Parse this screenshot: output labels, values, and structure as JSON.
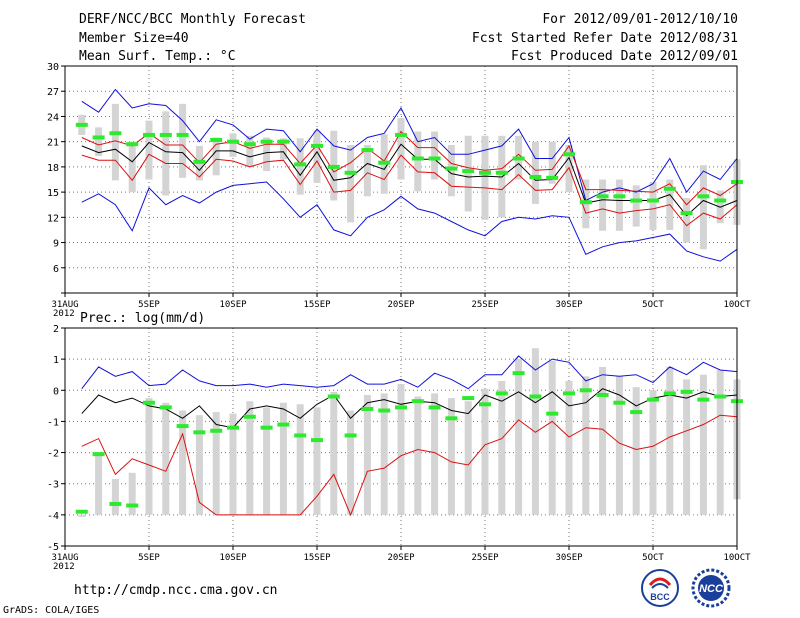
{
  "header": {
    "title": "DERF/NCC/BCC Monthly Forecast",
    "member_size": "Member Size=40",
    "variable": "Mean Surf. Temp.: °C",
    "forecast_for": "For 2012/09/01-2012/10/10",
    "started": "Fcst Started Refer Date 2012/08/31",
    "produced": "Fcst Produced Date 2012/09/01"
  },
  "footer": {
    "url": "http://cmdp.ncc.cma.gov.cn",
    "credit": "GrADS: COLA/IGES",
    "logo_bcc": "BCC",
    "logo_ncc": "NCC"
  },
  "colors": {
    "box": "#d4d4d4",
    "median": "#2eea2e",
    "upper": "#1010dd",
    "lower": "#1010dd",
    "mean": "#000000",
    "spread": "#dd1010"
  },
  "chart_data": [
    {
      "type": "line",
      "title": "Mean Surf. Temp.: °C",
      "x_tick_labels": [
        "31AUG\n2012",
        "5SEP",
        "10SEP",
        "15SEP",
        "20SEP",
        "25SEP",
        "30SEP",
        "5OCT",
        "10OCT"
      ],
      "x_tick_days": [
        0,
        5,
        10,
        15,
        20,
        25,
        30,
        35,
        40
      ],
      "xlim": [
        0,
        40
      ],
      "ylim": [
        3,
        30
      ],
      "y_ticks": [
        3,
        6,
        9,
        12,
        15,
        18,
        21,
        24,
        27,
        30
      ],
      "y_tick_labels": [
        "",
        "6",
        "9",
        "12",
        "15",
        "18",
        "21",
        "24",
        "27",
        "30"
      ],
      "days": [
        1,
        2,
        3,
        4,
        5,
        6,
        7,
        8,
        9,
        10,
        11,
        12,
        13,
        14,
        15,
        16,
        17,
        18,
        19,
        20,
        21,
        22,
        23,
        24,
        25,
        26,
        27,
        28,
        29,
        30,
        31,
        32,
        33,
        34,
        35,
        36,
        37,
        38,
        39,
        40
      ],
      "max": [
        25.8,
        24.5,
        27.2,
        25.0,
        25.5,
        25.3,
        23.5,
        21.0,
        23.6,
        23.0,
        21.3,
        22.5,
        22.3,
        19.8,
        22.5,
        20.5,
        20.0,
        21.5,
        22.0,
        25.0,
        21.0,
        21.5,
        19.5,
        19.5,
        20.0,
        20.5,
        22.5,
        19.0,
        19.0,
        21.5,
        14.0,
        15.0,
        15.5,
        15.0,
        16.0,
        19.0,
        15.0,
        17.5,
        16.5,
        19.0
      ],
      "min": [
        13.8,
        14.8,
        13.5,
        10.4,
        15.5,
        13.5,
        14.6,
        13.7,
        15.0,
        15.8,
        16.0,
        16.2,
        14.2,
        12.0,
        13.5,
        10.5,
        9.8,
        12.0,
        12.9,
        14.5,
        13.0,
        12.5,
        11.5,
        10.5,
        9.8,
        11.5,
        12.0,
        11.8,
        12.2,
        12.0,
        7.6,
        8.5,
        9.0,
        9.2,
        9.6,
        10.0,
        8.0,
        7.3,
        6.8,
        8.2
      ],
      "p_hi": [
        21.5,
        20.6,
        21.1,
        20.5,
        22.0,
        20.6,
        20.6,
        18.5,
        20.7,
        21.0,
        20.2,
        20.7,
        20.7,
        18.4,
        20.6,
        17.4,
        18.5,
        20.2,
        18.7,
        22.2,
        20.3,
        20.3,
        18.4,
        17.9,
        17.6,
        17.8,
        19.5,
        17.6,
        17.7,
        20.5,
        15.3,
        15.3,
        15.2,
        15.1,
        15.0,
        16.0,
        13.5,
        15.5,
        14.6,
        16.0
      ],
      "p_lo": [
        19.4,
        18.8,
        18.8,
        16.4,
        19.5,
        18.4,
        18.4,
        16.8,
        18.9,
        18.7,
        18.0,
        18.6,
        18.8,
        15.9,
        18.7,
        15.0,
        15.2,
        17.3,
        16.5,
        19.4,
        17.4,
        17.3,
        15.7,
        15.6,
        15.5,
        15.3,
        17.1,
        15.2,
        15.3,
        17.9,
        12.5,
        13.0,
        12.5,
        12.8,
        13.0,
        13.5,
        11.0,
        12.5,
        11.8,
        13.5
      ],
      "mean": [
        20.5,
        19.7,
        20.1,
        18.6,
        20.9,
        19.8,
        19.7,
        17.6,
        19.9,
        19.9,
        19.2,
        19.7,
        19.8,
        17.0,
        19.8,
        16.4,
        16.7,
        18.4,
        17.7,
        20.7,
        18.9,
        18.9,
        17.2,
        16.8,
        16.9,
        16.8,
        18.4,
        16.4,
        16.5,
        19.1,
        13.7,
        14.1,
        14.0,
        14.0,
        14.0,
        14.7,
        12.2,
        14.0,
        13.2,
        14.0
      ],
      "median": [
        23.0,
        21.5,
        22.0,
        20.7,
        21.8,
        21.8,
        21.8,
        18.6,
        21.2,
        21.0,
        20.7,
        21.0,
        21.0,
        18.3,
        20.5,
        18.0,
        17.3,
        20.0,
        18.5,
        21.8,
        19.0,
        19.0,
        17.8,
        17.5,
        17.3,
        17.3,
        19.0,
        16.8,
        16.7,
        19.5,
        13.8,
        14.5,
        14.5,
        14.0,
        14.0,
        15.4,
        12.5,
        14.5,
        14.0,
        16.2
      ],
      "box_top": [
        24.2,
        22.7,
        25.5,
        21.0,
        23.5,
        24.6,
        25.5,
        20.5,
        21.5,
        22.0,
        21.7,
        21.5,
        21.4,
        21.4,
        22.3,
        22.3,
        20.6,
        20.6,
        21.9,
        23.8,
        22.2,
        22.2,
        20.6,
        21.7,
        21.7,
        21.7,
        21.7,
        21.0,
        21.0,
        20.6,
        16.5,
        16.5,
        16.5,
        15.8,
        16.2,
        16.5,
        14.3,
        18.2,
        15.2,
        18.9
      ],
      "box_bot": [
        21.8,
        19.3,
        16.4,
        15.0,
        16.5,
        14.6,
        16.7,
        16.4,
        17.0,
        19.2,
        18.0,
        17.5,
        18.9,
        14.7,
        16.1,
        14.0,
        11.4,
        14.5,
        14.8,
        16.5,
        15.1,
        16.5,
        14.5,
        12.7,
        11.7,
        12.0,
        16.5,
        13.6,
        16.0,
        15.0,
        10.7,
        10.4,
        10.4,
        10.9,
        10.5,
        10.5,
        9.0,
        8.2,
        11.3,
        11.1
      ]
    },
    {
      "type": "line",
      "title": "Prec.: log(mm/d)",
      "x_tick_labels": [
        "31AUG\n2012",
        "5SEP",
        "10SEP",
        "15SEP",
        "20SEP",
        "25SEP",
        "30SEP",
        "5OCT",
        "10OCT"
      ],
      "x_tick_days": [
        0,
        5,
        10,
        15,
        20,
        25,
        30,
        35,
        40
      ],
      "xlim": [
        0,
        40
      ],
      "ylim": [
        -5,
        2
      ],
      "y_ticks": [
        -5,
        -4,
        -3,
        -2,
        -1,
        0,
        1,
        2
      ],
      "y_tick_labels": [
        "-5",
        "-4",
        "-3",
        "-2",
        "-1",
        "0",
        "1",
        "2"
      ],
      "days": [
        1,
        2,
        3,
        4,
        5,
        6,
        7,
        8,
        9,
        10,
        11,
        12,
        13,
        14,
        15,
        16,
        17,
        18,
        19,
        20,
        21,
        22,
        23,
        24,
        25,
        26,
        27,
        28,
        29,
        30,
        31,
        32,
        33,
        34,
        35,
        36,
        37,
        38,
        39,
        40
      ],
      "max": [
        0.05,
        0.75,
        0.45,
        0.6,
        0.15,
        0.2,
        0.65,
        0.3,
        0.15,
        0.15,
        0.2,
        0.1,
        0.2,
        0.15,
        0.1,
        0.15,
        0.5,
        0.2,
        0.2,
        0.35,
        0.1,
        0.55,
        0.35,
        0.05,
        0.5,
        0.5,
        1.1,
        0.65,
        1.0,
        0.9,
        0.3,
        0.5,
        0.45,
        0.5,
        0.25,
        0.75,
        0.5,
        0.9,
        0.65,
        0.6
      ],
      "min": [
        -1.8,
        -1.55,
        -2.7,
        -2.2,
        -2.4,
        -2.6,
        -1.4,
        -3.6,
        -4.0,
        -4.0,
        -4.0,
        -4.0,
        -4.0,
        -4.0,
        -3.4,
        -2.7,
        -4.0,
        -2.6,
        -2.5,
        -2.1,
        -1.9,
        -2.0,
        -2.3,
        -2.4,
        -1.75,
        -1.55,
        -0.95,
        -1.35,
        -1.0,
        -1.5,
        -1.2,
        -1.25,
        -1.7,
        -1.9,
        -1.8,
        -1.5,
        -1.3,
        -1.1,
        -0.8,
        -0.85
      ],
      "mean": [
        -0.75,
        -0.15,
        -0.4,
        -0.25,
        -0.5,
        -0.6,
        -0.9,
        -0.5,
        -1.1,
        -1.2,
        -0.6,
        -0.5,
        -0.6,
        -0.9,
        -0.45,
        -0.15,
        -0.9,
        -0.4,
        -0.3,
        -0.45,
        -0.35,
        -0.4,
        -0.65,
        -0.75,
        -0.15,
        -0.35,
        -0.05,
        -0.4,
        -0.05,
        -0.5,
        -0.4,
        0.05,
        -0.15,
        -0.5,
        -0.25,
        -0.15,
        -0.25,
        -0.05,
        -0.2,
        -0.15
      ],
      "median": [
        -3.9,
        -2.05,
        -3.65,
        -3.7,
        -0.4,
        -0.55,
        -1.15,
        -1.35,
        -1.3,
        -1.2,
        -0.85,
        -1.2,
        -1.1,
        -1.45,
        -1.6,
        -0.2,
        -1.45,
        -0.6,
        -0.65,
        -0.55,
        -0.35,
        -0.55,
        -0.9,
        -0.25,
        -0.45,
        -0.1,
        0.55,
        -0.2,
        -0.75,
        -0.1,
        0.0,
        -0.15,
        -0.4,
        -0.7,
        -0.3,
        -0.1,
        -0.05,
        -0.3,
        -0.2,
        -0.35
      ],
      "box_top": [
        -4.0,
        -2.0,
        -2.85,
        -2.65,
        -0.25,
        -0.4,
        -0.65,
        -0.8,
        -0.7,
        -0.75,
        -0.35,
        -0.55,
        -0.4,
        -0.45,
        -0.55,
        -0.05,
        -0.65,
        -0.15,
        -0.1,
        0.2,
        -0.2,
        -0.1,
        -0.25,
        -0.35,
        0.05,
        0.3,
        1.0,
        1.35,
        0.95,
        0.3,
        0.45,
        0.75,
        0.45,
        0.1,
        0.0,
        0.75,
        0.35,
        0.5,
        0.65,
        0.35
      ],
      "box_bot": [
        -4.0,
        -4.0,
        -4.0,
        -4.0,
        -4.0,
        -4.0,
        -4.0,
        -4.0,
        -4.0,
        -4.0,
        -4.0,
        -4.0,
        -4.0,
        -4.0,
        -4.0,
        -4.0,
        -4.0,
        -4.0,
        -4.0,
        -4.0,
        -4.0,
        -4.0,
        -4.0,
        -4.0,
        -4.0,
        -4.0,
        -4.0,
        -4.0,
        -4.0,
        -4.0,
        -4.0,
        -4.0,
        -4.0,
        -4.0,
        -4.0,
        -4.0,
        -4.0,
        -4.0,
        -4.0,
        -3.5
      ]
    }
  ]
}
